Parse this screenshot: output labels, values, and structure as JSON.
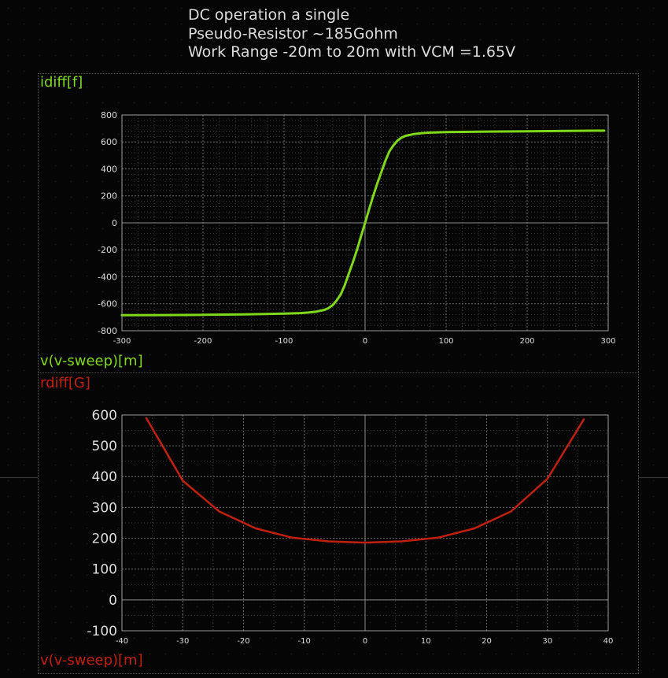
{
  "title": {
    "lines": [
      "DC operation a single",
      "Pseudo-Resistor ~185Gohm",
      "Work Range -20m to 20m with VCM =1.65V"
    ]
  },
  "colors": {
    "background": "#050505",
    "trace_top": "#7fd81a",
    "trace_bottom": "#c0200e",
    "text": "#dcdcdc",
    "grid": "#6a6a6a",
    "axis": "#9a9a9a"
  },
  "chart_data": [
    {
      "type": "line",
      "ylabel": "idiff[f]",
      "xlabel": "v(v-sweep)[m]",
      "xlim": [
        -300,
        300
      ],
      "ylim": [
        -800,
        800
      ],
      "x_ticks": [
        -300,
        -200,
        -100,
        0,
        100,
        200,
        300
      ],
      "y_ticks": [
        -800,
        -600,
        -400,
        -200,
        0,
        200,
        400,
        600,
        800
      ],
      "x_ticks_labels": [
        "-300",
        "-200",
        "-100",
        "0",
        "100",
        "200",
        "300"
      ],
      "y_ticks_labels": [
        "-800",
        "-600",
        "-400",
        "-200",
        "0",
        "200",
        "400",
        "600",
        "800"
      ],
      "grid": true,
      "series": [
        {
          "name": "idiff[f]",
          "color": "#7fd81a",
          "x": [
            -300,
            -250,
            -200,
            -150,
            -130,
            -100,
            -80,
            -70,
            -60,
            -50,
            -45,
            -40,
            -35,
            -30,
            -25,
            -20,
            -15,
            -10,
            -5,
            0,
            5,
            10,
            15,
            20,
            25,
            30,
            35,
            40,
            45,
            50,
            60,
            70,
            80,
            100,
            150,
            200,
            250,
            295
          ],
          "y": [
            -685,
            -684,
            -682,
            -679,
            -677,
            -673,
            -669,
            -665,
            -658,
            -645,
            -632,
            -610,
            -575,
            -530,
            -460,
            -375,
            -290,
            -200,
            -100,
            0,
            100,
            200,
            290,
            375,
            460,
            530,
            575,
            610,
            632,
            645,
            658,
            665,
            669,
            673,
            677,
            679,
            682,
            684
          ]
        }
      ]
    },
    {
      "type": "line",
      "ylabel": "rdiff[G]",
      "xlabel": "v(v-sweep)[m]",
      "xlim": [
        -40,
        40
      ],
      "ylim": [
        -100,
        600
      ],
      "x_ticks": [
        -40,
        -30,
        -20,
        -10,
        0,
        10,
        20,
        30,
        40
      ],
      "y_ticks": [
        -100,
        0,
        100,
        200,
        300,
        400,
        500,
        600
      ],
      "x_ticks_labels": [
        "-40",
        "-30",
        "-20",
        "-10",
        "0",
        "10",
        "20",
        "30",
        "40"
      ],
      "y_ticks_labels": [
        "-100",
        "0",
        "100",
        "200",
        "300",
        "400",
        "500",
        "600"
      ],
      "grid": true,
      "series": [
        {
          "name": "rdiff[G]",
          "color": "#c0200e",
          "x": [
            -36,
            -30,
            -24,
            -18,
            -12,
            -6,
            0,
            6,
            12,
            18,
            24,
            30,
            36
          ],
          "y": [
            590,
            387,
            287,
            232,
            202,
            190,
            186,
            190,
            202,
            232,
            287,
            393,
            586
          ]
        }
      ]
    }
  ]
}
